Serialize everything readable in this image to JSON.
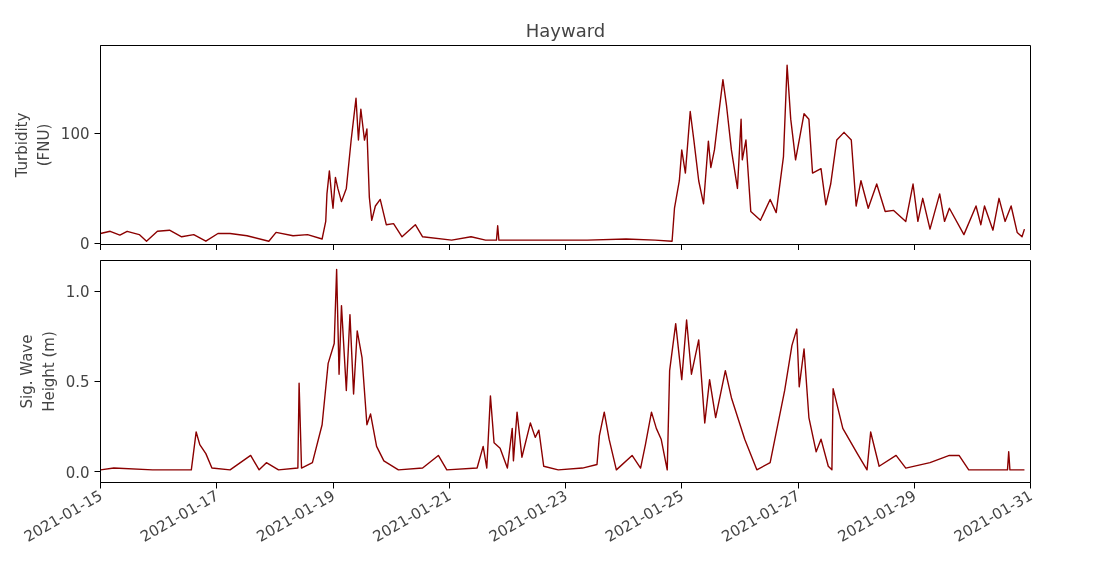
{
  "chart_data": [
    {
      "type": "line",
      "title": "Hayward",
      "ylabel": "Turbidity (FNU)",
      "xlim": [
        "2021-01-15",
        "2021-01-31"
      ],
      "xticks": [
        "2021-01-15",
        "2021-01-17",
        "2021-01-19",
        "2021-01-21",
        "2021-01-23",
        "2021-01-25",
        "2021-01-27",
        "2021-01-29",
        "2021-01-31"
      ],
      "ylim": [
        -1,
        180
      ],
      "yticks": [
        0,
        100
      ],
      "tick_labels": "y",
      "series": [
        {
          "color": "#8b0000",
          "x": [
            "2021-01-15T00:00",
            "2021-01-15T04:00",
            "2021-01-15T08:00",
            "2021-01-15T11:00",
            "2021-01-15T16:00",
            "2021-01-15T19:00",
            "2021-01-15T23:30",
            "2021-01-16T04:30",
            "2021-01-16T09:30",
            "2021-01-16T14:30",
            "2021-01-16T19:30",
            "2021-01-17T00:30",
            "2021-01-17T05:30",
            "2021-01-17T12:30",
            "2021-01-17T21:30",
            "2021-01-18T00:30",
            "2021-01-18T07:30",
            "2021-01-18T13:30",
            "2021-01-18T19:30",
            "2021-01-18T21:00",
            "2021-01-18T21:30",
            "2021-01-18T22:30",
            "2021-01-18T23:30",
            "2021-01-19T00:00",
            "2021-01-19T01:00",
            "2021-01-19T02:00",
            "2021-01-19T03:30",
            "2021-01-19T05:30",
            "2021-01-19T07:30",
            "2021-01-19T08:30",
            "2021-01-19T09:30",
            "2021-01-19T10:30",
            "2021-01-19T11:30",
            "2021-01-19T13:00",
            "2021-01-19T14:00",
            "2021-01-19T15:00",
            "2021-01-19T16:00",
            "2021-01-19T17:30",
            "2021-01-19T19:30",
            "2021-01-19T22:00",
            "2021-01-20T01:00",
            "2021-01-20T04:30",
            "2021-01-20T10:00",
            "2021-01-20T13:00",
            "2021-01-21T01:00",
            "2021-01-21T09:00",
            "2021-01-21T15:00",
            "2021-01-21T19:30",
            "2021-01-21T20:00",
            "2021-01-21T20:30",
            "2021-01-22T13:00",
            "2021-01-23T09:00",
            "2021-01-24T01:00",
            "2021-01-24T13:00",
            "2021-01-24T20:00",
            "2021-01-24T21:00",
            "2021-01-24T23:00",
            "2021-01-25T00:00",
            "2021-01-25T01:30",
            "2021-01-25T03:30",
            "2021-01-25T05:00",
            "2021-01-25T07:00",
            "2021-01-25T09:00",
            "2021-01-25T11:00",
            "2021-01-25T12:00",
            "2021-01-25T13:30",
            "2021-01-25T15:00",
            "2021-01-25T17:00",
            "2021-01-25T18:30",
            "2021-01-25T20:30",
            "2021-01-25T23:00",
            "2021-01-26T00:30",
            "2021-01-26T01:00",
            "2021-01-26T02:30",
            "2021-01-26T04:30",
            "2021-01-26T08:30",
            "2021-01-26T12:30",
            "2021-01-26T15:00",
            "2021-01-26T18:00",
            "2021-01-26T19:30",
            "2021-01-26T21:00",
            "2021-01-26T23:00",
            "2021-01-27T00:30",
            "2021-01-27T02:30",
            "2021-01-27T04:30",
            "2021-01-27T06:00",
            "2021-01-27T09:30",
            "2021-01-27T11:30",
            "2021-01-27T13:30",
            "2021-01-27T16:00",
            "2021-01-27T19:00",
            "2021-01-27T22:00",
            "2021-01-28T00:00",
            "2021-01-28T02:00",
            "2021-01-28T05:00",
            "2021-01-28T08:30",
            "2021-01-28T12:00",
            "2021-01-28T15:30",
            "2021-01-28T20:30",
            "2021-01-28T23:30",
            "2021-01-29T01:30",
            "2021-01-29T03:30",
            "2021-01-29T06:30",
            "2021-01-29T10:30",
            "2021-01-29T12:30",
            "2021-01-29T14:30",
            "2021-01-29T20:30",
            "2021-01-30T01:30",
            "2021-01-30T03:30",
            "2021-01-30T05:00",
            "2021-01-30T08:30",
            "2021-01-30T11:00",
            "2021-01-30T13:30",
            "2021-01-30T16:00",
            "2021-01-30T18:30",
            "2021-01-30T20:30",
            "2021-01-30T21:30"
          ],
          "values": [
            9,
            11,
            7.5,
            11,
            8,
            2,
            11,
            12,
            6,
            8,
            2,
            9,
            9,
            7,
            2,
            10,
            7,
            8,
            4,
            20,
            45,
            66,
            42,
            32,
            60,
            50,
            38,
            50,
            94,
            113,
            132,
            94,
            122,
            94,
            104,
            42,
            21,
            34,
            40,
            17,
            18,
            6,
            17,
            6,
            3,
            6,
            3,
            3,
            16,
            3,
            3,
            3,
            4,
            3,
            2,
            32,
            57,
            85,
            64,
            120,
            94,
            57,
            36,
            93,
            69,
            85,
            113,
            149,
            125,
            85,
            50,
            113,
            76,
            94,
            29,
            21,
            40,
            28,
            79,
            162,
            113,
            76,
            94,
            118,
            113,
            64,
            68,
            35,
            54,
            94,
            101,
            94,
            34,
            57,
            32,
            54,
            29,
            30,
            20,
            54,
            20,
            41,
            13,
            45,
            20,
            32,
            8,
            34,
            17,
            34,
            12,
            41,
            20,
            34,
            10,
            6,
            13
          ]
        }
      ]
    },
    {
      "type": "line",
      "ylabel": "Sig. Wave Height (m)",
      "xlim": [
        "2021-01-15",
        "2021-01-31"
      ],
      "xticks": [
        "2021-01-15",
        "2021-01-17",
        "2021-01-19",
        "2021-01-21",
        "2021-01-23",
        "2021-01-25",
        "2021-01-27",
        "2021-01-29",
        "2021-01-31"
      ],
      "ylim": [
        -0.06,
        1.17
      ],
      "yticks": [
        {
          "value": 0,
          "label": "0.0"
        },
        {
          "value": 0.5,
          "label": "0.5"
        },
        {
          "value": 1,
          "label": "1.0"
        }
      ],
      "series": [
        {
          "color": "#8b0000",
          "x": [
            "2021-01-15T00:00",
            "2021-01-15T05:30",
            "2021-01-15T21:30",
            "2021-01-16T13:30",
            "2021-01-16T15:30",
            "2021-01-16T17:00",
            "2021-01-16T19:30",
            "2021-01-16T22:00",
            "2021-01-17T05:30",
            "2021-01-17T14:00",
            "2021-01-17T17:30",
            "2021-01-17T20:30",
            "2021-01-18T01:30",
            "2021-01-18T09:30",
            "2021-01-18T10:00",
            "2021-01-18T11:00",
            "2021-01-18T15:30",
            "2021-01-18T19:30",
            "2021-01-18T22:00",
            "2021-01-19T00:30",
            "2021-01-19T01:30",
            "2021-01-19T02:30",
            "2021-01-19T03:30",
            "2021-01-19T05:30",
            "2021-01-19T07:00",
            "2021-01-19T08:30",
            "2021-01-19T10:00",
            "2021-01-19T12:00",
            "2021-01-19T14:00",
            "2021-01-19T15:30",
            "2021-01-19T18:00",
            "2021-01-19T21:00",
            "2021-01-20T03:00",
            "2021-01-20T13:00",
            "2021-01-20T19:30",
            "2021-01-20T23:00",
            "2021-01-21T11:30",
            "2021-01-21T14:00",
            "2021-01-21T15:30",
            "2021-01-21T17:00",
            "2021-01-21T18:30",
            "2021-01-21T21:00",
            "2021-01-22T00:00",
            "2021-01-22T02:00",
            "2021-01-22T02:30",
            "2021-01-22T04:00",
            "2021-01-22T06:00",
            "2021-01-22T09:30",
            "2021-01-22T11:30",
            "2021-01-22T13:00",
            "2021-01-22T15:00",
            "2021-01-22T21:00",
            "2021-01-23T07:00",
            "2021-01-23T13:00",
            "2021-01-23T14:00",
            "2021-01-23T16:00",
            "2021-01-23T18:00",
            "2021-01-23T21:00",
            "2021-01-24T03:30",
            "2021-01-24T07:00",
            "2021-01-24T09:00",
            "2021-01-24T11:30",
            "2021-01-24T13:30",
            "2021-01-24T15:30",
            "2021-01-24T18:00",
            "2021-01-24T19:00",
            "2021-01-24T21:30",
            "2021-01-25T00:00",
            "2021-01-25T02:00",
            "2021-01-25T04:00",
            "2021-01-25T07:00",
            "2021-01-25T09:30",
            "2021-01-25T11:30",
            "2021-01-25T14:00",
            "2021-01-25T18:00",
            "2021-01-25T20:30",
            "2021-01-26T02:00",
            "2021-01-26T07:00",
            "2021-01-26T12:30",
            "2021-01-26T18:30",
            "2021-01-26T21:30",
            "2021-01-26T23:30",
            "2021-01-27T00:30",
            "2021-01-27T02:30",
            "2021-01-27T04:30",
            "2021-01-27T07:30",
            "2021-01-27T09:30",
            "2021-01-27T12:30",
            "2021-01-27T14:00",
            "2021-01-27T14:30",
            "2021-01-27T18:30",
            "2021-01-28T00:30",
            "2021-01-28T04:30",
            "2021-01-28T06:00",
            "2021-01-28T09:30",
            "2021-01-28T16:30",
            "2021-01-28T20:30",
            "2021-01-29T06:30",
            "2021-01-29T14:30",
            "2021-01-29T18:30",
            "2021-01-29T22:30",
            "2021-01-30T14:30",
            "2021-01-30T15:00",
            "2021-01-30T15:30",
            "2021-01-30T21:30"
          ],
          "values": [
            0.01,
            0.02,
            0.01,
            0.01,
            0.22,
            0.15,
            0.1,
            0.02,
            0.01,
            0.09,
            0.01,
            0.05,
            0.01,
            0.02,
            0.49,
            0.02,
            0.05,
            0.26,
            0.6,
            0.71,
            1.12,
            0.54,
            0.92,
            0.45,
            0.87,
            0.43,
            0.78,
            0.63,
            0.26,
            0.32,
            0.14,
            0.06,
            0.01,
            0.02,
            0.09,
            0.01,
            0.02,
            0.14,
            0.02,
            0.42,
            0.16,
            0.13,
            0.02,
            0.24,
            0.06,
            0.33,
            0.08,
            0.27,
            0.19,
            0.23,
            0.03,
            0.01,
            0.02,
            0.04,
            0.2,
            0.33,
            0.18,
            0.01,
            0.09,
            0.02,
            0.15,
            0.33,
            0.24,
            0.18,
            0.01,
            0.56,
            0.82,
            0.51,
            0.84,
            0.54,
            0.73,
            0.27,
            0.51,
            0.3,
            0.56,
            0.41,
            0.18,
            0.01,
            0.05,
            0.45,
            0.7,
            0.79,
            0.47,
            0.68,
            0.3,
            0.11,
            0.18,
            0.03,
            0.01,
            0.46,
            0.24,
            0.1,
            0.01,
            0.22,
            0.03,
            0.09,
            0.02,
            0.05,
            0.09,
            0.09,
            0.01,
            0.01,
            0.11,
            0.01,
            0.01
          ]
        }
      ]
    }
  ]
}
